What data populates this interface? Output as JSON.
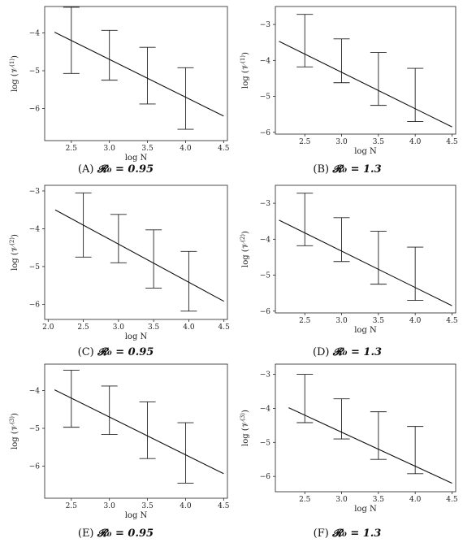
{
  "chart_data": [
    {
      "type": "errorbar-line",
      "caption_label": "(A)",
      "caption_eq": "𝓡₀ = 0.95",
      "ylabel": "log(𝒱_N^(1))",
      "ylabel_main": "log",
      "ylabel_sup": "(1)",
      "xlabel": "log N",
      "xlim": [
        2.15,
        4.55
      ],
      "ylim": [
        -6.85,
        -3.3
      ],
      "xticks": [
        "2.5",
        "3.0",
        "3.5",
        "4.0",
        "4.5"
      ],
      "xtick_values": [
        2.5,
        3.0,
        3.5,
        4.0,
        4.5
      ],
      "yticks": [
        "-4",
        "-5",
        "-6"
      ],
      "ytick_values": [
        -4,
        -5,
        -6
      ],
      "errorbars": [
        {
          "x": 2.5,
          "low": -5.07,
          "high": -3.32
        },
        {
          "x": 3.0,
          "low": -5.25,
          "high": -3.93
        },
        {
          "x": 3.5,
          "low": -5.88,
          "high": -4.38
        },
        {
          "x": 4.0,
          "low": -6.55,
          "high": -4.92
        }
      ],
      "fit_line": {
        "x": [
          2.28,
          4.5
        ],
        "y": [
          -3.98,
          -6.2
        ]
      }
    },
    {
      "type": "errorbar-line",
      "caption_label": "(B)",
      "caption_eq": "𝓡₀ = 1.3",
      "ylabel": "log(𝒱_N^(1))",
      "ylabel_main": "log",
      "ylabel_sup": "(1)",
      "xlabel": "log N",
      "xlim": [
        2.1,
        4.55
      ],
      "ylim": [
        -6.05,
        -2.5
      ],
      "xticks": [
        "2.5",
        "3.0",
        "3.5",
        "4.0",
        "4.5"
      ],
      "xtick_values": [
        2.5,
        3.0,
        3.5,
        4.0,
        4.5
      ],
      "yticks": [
        "-3",
        "-4",
        "-5",
        "-6"
      ],
      "ytick_values": [
        -3,
        -4,
        -5,
        -6
      ],
      "errorbars": [
        {
          "x": 2.5,
          "low": -4.18,
          "high": -2.72
        },
        {
          "x": 3.0,
          "low": -4.62,
          "high": -3.4
        },
        {
          "x": 3.5,
          "low": -5.25,
          "high": -3.78
        },
        {
          "x": 4.0,
          "low": -5.7,
          "high": -4.22
        }
      ],
      "fit_line": {
        "x": [
          2.15,
          4.5
        ],
        "y": [
          -3.47,
          -5.85
        ]
      }
    },
    {
      "type": "errorbar-line",
      "caption_label": "(C)",
      "caption_eq": "𝓡₀ = 0.95",
      "ylabel": "log(𝒱_N^(2))",
      "ylabel_main": "log",
      "ylabel_sup": "(2)",
      "xlabel": "log N",
      "xlim": [
        1.95,
        4.55
      ],
      "ylim": [
        -6.4,
        -2.85
      ],
      "xticks": [
        "2.0",
        "2.5",
        "3.0",
        "3.5",
        "4.0",
        "4.5"
      ],
      "xtick_values": [
        2.0,
        2.5,
        3.0,
        3.5,
        4.0,
        4.5
      ],
      "yticks": [
        "-3",
        "-4",
        "-5",
        "-6"
      ],
      "ytick_values": [
        -3,
        -4,
        -5,
        -6
      ],
      "errorbars": [
        {
          "x": 2.5,
          "low": -4.75,
          "high": -3.05
        },
        {
          "x": 3.0,
          "low": -4.9,
          "high": -3.62
        },
        {
          "x": 3.5,
          "low": -5.57,
          "high": -4.03
        },
        {
          "x": 4.0,
          "low": -6.18,
          "high": -4.6
        }
      ],
      "fit_line": {
        "x": [
          2.1,
          4.5
        ],
        "y": [
          -3.5,
          -5.92
        ]
      }
    },
    {
      "type": "errorbar-line",
      "caption_label": "(D)",
      "caption_eq": "𝓡₀ = 1.3",
      "ylabel": "log(𝒱_N^(2))",
      "ylabel_main": "log",
      "ylabel_sup": "(2)",
      "xlabel": "log N",
      "xlim": [
        2.1,
        4.55
      ],
      "ylim": [
        -6.05,
        -2.5
      ],
      "xticks": [
        "2.5",
        "3.0",
        "3.5",
        "4.0",
        "4.5"
      ],
      "xtick_values": [
        2.5,
        3.0,
        3.5,
        4.0,
        4.5
      ],
      "yticks": [
        "-3",
        "-4",
        "-5",
        "-6"
      ],
      "ytick_values": [
        -3,
        -4,
        -5,
        -6
      ],
      "errorbars": [
        {
          "x": 2.5,
          "low": -4.18,
          "high": -2.72
        },
        {
          "x": 3.0,
          "low": -4.62,
          "high": -3.4
        },
        {
          "x": 3.5,
          "low": -5.25,
          "high": -3.78
        },
        {
          "x": 4.0,
          "low": -5.7,
          "high": -4.22
        }
      ],
      "fit_line": {
        "x": [
          2.15,
          4.5
        ],
        "y": [
          -3.47,
          -5.85
        ]
      }
    },
    {
      "type": "errorbar-line",
      "caption_label": "(E)",
      "caption_eq": "𝓡₀ = 0.95",
      "ylabel": "log(𝒱_N^(3))",
      "ylabel_main": "log",
      "ylabel_sup": "(3)",
      "xlabel": "log N",
      "xlim": [
        2.15,
        4.55
      ],
      "ylim": [
        -6.85,
        -3.3
      ],
      "xticks": [
        "2.5",
        "3.0",
        "3.5",
        "4.0",
        "4.5"
      ],
      "xtick_values": [
        2.5,
        3.0,
        3.5,
        4.0,
        4.5
      ],
      "yticks": [
        "-4",
        "-5",
        "-6"
      ],
      "ytick_values": [
        -4,
        -5,
        -6
      ],
      "errorbars": [
        {
          "x": 2.5,
          "low": -4.97,
          "high": -3.46
        },
        {
          "x": 3.0,
          "low": -5.16,
          "high": -3.88
        },
        {
          "x": 3.5,
          "low": -5.8,
          "high": -4.3
        },
        {
          "x": 4.0,
          "low": -6.45,
          "high": -4.85
        }
      ],
      "fit_line": {
        "x": [
          2.28,
          4.5
        ],
        "y": [
          -3.98,
          -6.2
        ]
      }
    },
    {
      "type": "errorbar-line",
      "caption_label": "(F)",
      "caption_eq": "𝓡₀ = 1.3",
      "ylabel": "log(𝒱_N^(3))",
      "ylabel_main": "log",
      "ylabel_sup": "(3)",
      "xlabel": "log N",
      "xlim": [
        2.1,
        4.55
      ],
      "ylim": [
        -6.45,
        -2.7
      ],
      "xticks": [
        "2.5",
        "3.0",
        "3.5",
        "4.0",
        "4.5"
      ],
      "xtick_values": [
        2.5,
        3.0,
        3.5,
        4.0,
        4.5
      ],
      "yticks": [
        "-3",
        "-4",
        "-5",
        "-6"
      ],
      "ytick_values": [
        -3,
        -4,
        -5,
        -6
      ],
      "errorbars": [
        {
          "x": 2.5,
          "low": -4.42,
          "high": -3.0
        },
        {
          "x": 3.0,
          "low": -4.9,
          "high": -3.72
        },
        {
          "x": 3.5,
          "low": -5.5,
          "high": -4.1
        },
        {
          "x": 4.0,
          "low": -5.92,
          "high": -4.53
        }
      ],
      "fit_line": {
        "x": [
          2.28,
          4.5
        ],
        "y": [
          -3.98,
          -6.2
        ]
      }
    }
  ]
}
